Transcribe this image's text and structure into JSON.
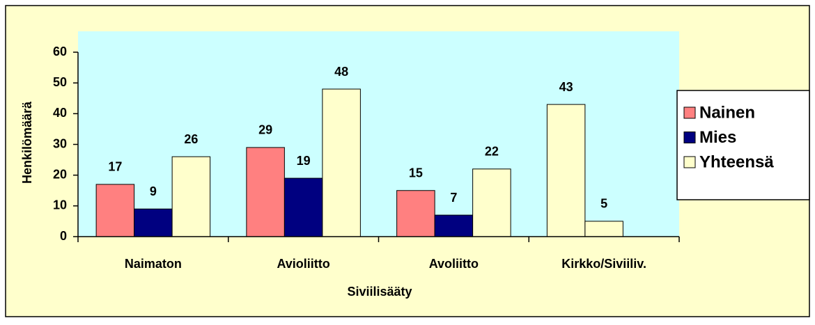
{
  "chart_data": {
    "type": "bar",
    "categories": [
      "Naimaton",
      "Avioliitto",
      "Avoliitto",
      "Kirkko/Siviiliv."
    ],
    "series": [
      {
        "name": "Nainen",
        "color": "#ff8080",
        "colors": [
          "#ff8080",
          "#ff8080",
          "#ff8080",
          "#ffffcc"
        ],
        "values": [
          17,
          29,
          15,
          43
        ]
      },
      {
        "name": "Mies",
        "color": "#000080",
        "colors": [
          "#000080",
          "#000080",
          "#000080",
          "#ffffcc"
        ],
        "values": [
          9,
          19,
          7,
          5
        ]
      },
      {
        "name": "Yhteensä",
        "color": "#ffffcc",
        "colors": [
          "#ffffcc",
          "#ffffcc",
          "#ffffcc",
          "#ffffcc"
        ],
        "values": [
          26,
          48,
          22,
          null
        ]
      }
    ],
    "xlabel": "Siviilisääty",
    "ylabel": "Henkilömäärä",
    "ylim": [
      0,
      60
    ],
    "yticks": [
      0,
      10,
      20,
      30,
      40,
      50,
      60
    ],
    "grid": false,
    "legend": "right"
  }
}
